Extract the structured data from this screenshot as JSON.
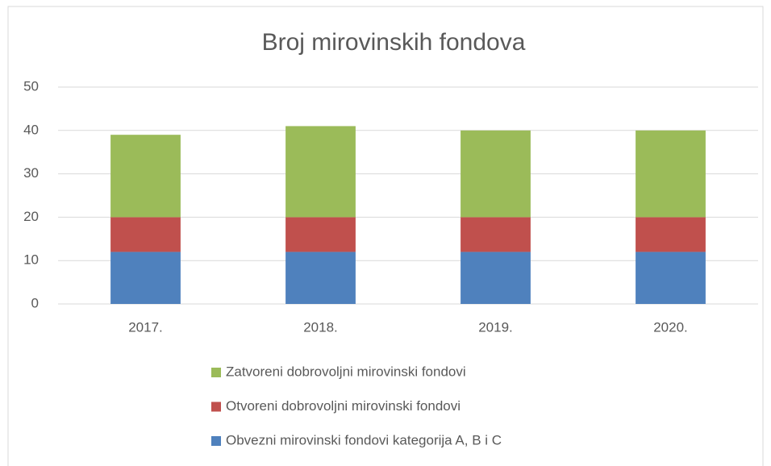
{
  "chart_data": {
    "type": "bar",
    "stacked": true,
    "title": "Broj mirovinskih fondova",
    "categories": [
      "2017.",
      "2018.",
      "2019.",
      "2020."
    ],
    "series": [
      {
        "name": "Obvezni mirovinski fondovi kategorija A, B i C",
        "color": "#4f81bd",
        "values": [
          12,
          12,
          12,
          12
        ]
      },
      {
        "name": "Otvoreni dobrovoljni mirovinski fondovi",
        "color": "#c0504d",
        "values": [
          8,
          8,
          8,
          8
        ]
      },
      {
        "name": "Zatvoreni dobrovoljni mirovinski fondovi",
        "color": "#9bbb59",
        "values": [
          19,
          21,
          20,
          20
        ]
      }
    ],
    "ylim": [
      0,
      50
    ],
    "yticks": [
      0,
      10,
      20,
      30,
      40,
      50
    ],
    "grid": true
  }
}
